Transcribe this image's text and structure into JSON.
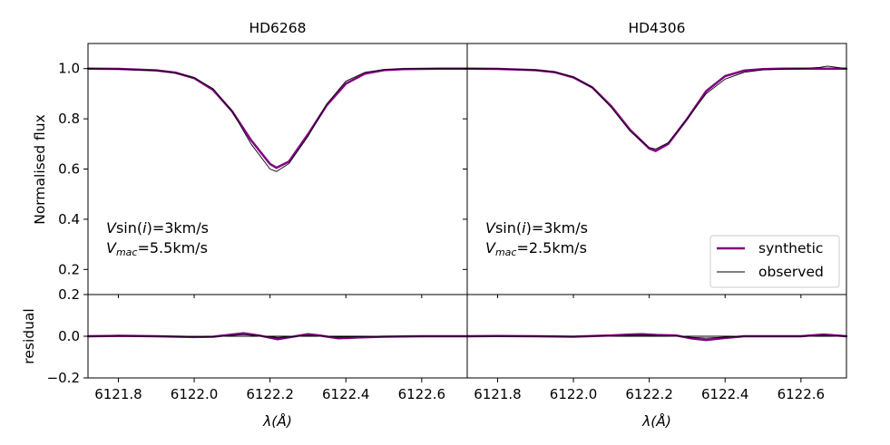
{
  "chart_data": {
    "type": "line",
    "x_range": [
      6121.72,
      6122.72
    ],
    "x_ticks": [
      6121.8,
      6122.0,
      6122.2,
      6122.4,
      6122.6
    ],
    "x_tick_labels": [
      "6121.8",
      "6122.0",
      "6122.2",
      "6122.4",
      "6122.6"
    ],
    "xlabel": "λ(Å)",
    "ylabel_top": "Normalised flux",
    "ylabel_bottom": "residual",
    "ylim_top": [
      0.1,
      1.1
    ],
    "ylim_bottom": [
      -0.2,
      0.2
    ],
    "y_ticks_top": [
      0.2,
      0.4,
      0.6,
      0.8,
      1.0
    ],
    "y_tick_labels_top": [
      "0.2",
      "0.4",
      "0.6",
      "0.8",
      "1.0"
    ],
    "y_ticks_bottom": [
      -0.2,
      0.0,
      0.2
    ],
    "y_tick_labels_bottom": [
      "−0.2",
      "0.0",
      "0.2"
    ],
    "colors": {
      "synthetic": "#800080",
      "observed": "#000000"
    },
    "legend": {
      "placement": "lower-right of right panel",
      "entries": [
        {
          "label": "synthetic",
          "color": "#800080"
        },
        {
          "label": "observed",
          "color": "#000000"
        }
      ]
    },
    "panels": [
      {
        "title": "HD6268",
        "annotation_line1": {
          "pre": "V",
          "mid": "sin(",
          "italic": "i",
          "post": ")=3km/s"
        },
        "annotation_line2": {
          "pre": "V",
          "sub": "mac",
          "post": "=5.5km/s"
        },
        "line_center": 6122.217,
        "series": [
          {
            "name": "synthetic",
            "x": [
              6121.72,
              6121.8,
              6121.9,
              6121.95,
              6122.0,
              6122.05,
              6122.1,
              6122.15,
              6122.2,
              6122.217,
              6122.25,
              6122.3,
              6122.35,
              6122.4,
              6122.45,
              6122.5,
              6122.55,
              6122.6,
              6122.65,
              6122.72
            ],
            "y": [
              1.0,
              0.999,
              0.993,
              0.984,
              0.962,
              0.915,
              0.83,
              0.715,
              0.62,
              0.605,
              0.63,
              0.738,
              0.855,
              0.94,
              0.98,
              0.994,
              0.998,
              0.999,
              1.0,
              1.0
            ]
          },
          {
            "name": "observed",
            "x": [
              6121.72,
              6121.8,
              6121.9,
              6121.95,
              6122.0,
              6122.05,
              6122.1,
              6122.15,
              6122.2,
              6122.217,
              6122.25,
              6122.3,
              6122.35,
              6122.4,
              6122.45,
              6122.5,
              6122.55,
              6122.6,
              6122.65,
              6122.72
            ],
            "y": [
              1.0,
              0.998,
              0.992,
              0.983,
              0.964,
              0.92,
              0.83,
              0.7,
              0.6,
              0.59,
              0.622,
              0.73,
              0.86,
              0.95,
              0.985,
              0.996,
              0.999,
              1.0,
              1.0,
              1.0
            ]
          }
        ],
        "residual": {
          "x": [
            6121.72,
            6121.8,
            6121.9,
            6122.0,
            6122.05,
            6122.1,
            6122.13,
            6122.17,
            6122.22,
            6122.26,
            6122.3,
            6122.33,
            6122.38,
            6122.43,
            6122.5,
            6122.6,
            6122.72
          ],
          "synthetic": [
            0.0,
            0.002,
            0.0,
            -0.004,
            -0.002,
            0.008,
            0.014,
            0.004,
            -0.014,
            -0.002,
            0.01,
            0.004,
            -0.01,
            -0.006,
            -0.002,
            0.0,
            0.0
          ],
          "observed": [
            0.0,
            0.001,
            0.0,
            -0.002,
            -0.002,
            0.004,
            0.008,
            0.002,
            -0.006,
            -0.002,
            0.004,
            0.002,
            -0.004,
            -0.002,
            -0.001,
            0.0,
            0.0
          ]
        }
      },
      {
        "title": "HD4306",
        "annotation_line1": {
          "pre": "V",
          "mid": "sin(",
          "italic": "i",
          "post": ")=3km/s"
        },
        "annotation_line2": {
          "pre": "V",
          "sub": "mac",
          "post": "=2.5km/s"
        },
        "line_center": 6122.217,
        "series": [
          {
            "name": "synthetic",
            "x": [
              6121.72,
              6121.8,
              6121.9,
              6121.95,
              6122.0,
              6122.05,
              6122.1,
              6122.15,
              6122.2,
              6122.217,
              6122.25,
              6122.3,
              6122.35,
              6122.4,
              6122.45,
              6122.5,
              6122.55,
              6122.6,
              6122.65,
              6122.67,
              6122.72
            ],
            "y": [
              1.0,
              0.999,
              0.994,
              0.986,
              0.965,
              0.925,
              0.85,
              0.755,
              0.682,
              0.672,
              0.7,
              0.8,
              0.91,
              0.97,
              0.992,
              0.998,
              1.0,
              1.0,
              1.0,
              1.0,
              1.0
            ]
          },
          {
            "name": "observed",
            "x": [
              6121.72,
              6121.8,
              6121.9,
              6121.95,
              6122.0,
              6122.05,
              6122.1,
              6122.15,
              6122.2,
              6122.217,
              6122.25,
              6122.3,
              6122.35,
              6122.4,
              6122.45,
              6122.5,
              6122.55,
              6122.6,
              6122.65,
              6122.67,
              6122.72
            ],
            "y": [
              1.0,
              0.999,
              0.994,
              0.987,
              0.967,
              0.925,
              0.845,
              0.75,
              0.685,
              0.68,
              0.705,
              0.8,
              0.9,
              0.958,
              0.985,
              0.995,
              0.998,
              1.0,
              1.005,
              1.01,
              1.0
            ]
          }
        ],
        "residual": {
          "x": [
            6121.72,
            6121.8,
            6121.9,
            6122.0,
            6122.1,
            6122.15,
            6122.18,
            6122.22,
            6122.27,
            6122.31,
            6122.35,
            6122.4,
            6122.45,
            6122.5,
            6122.6,
            6122.66,
            6122.72
          ],
          "synthetic": [
            0.0,
            0.001,
            0.0,
            -0.002,
            0.004,
            0.008,
            0.01,
            0.006,
            0.004,
            -0.01,
            -0.018,
            -0.008,
            0.0,
            0.0,
            0.0,
            0.008,
            0.0
          ],
          "observed": [
            0.0,
            0.0,
            0.0,
            -0.001,
            0.002,
            0.004,
            0.005,
            0.003,
            0.002,
            -0.005,
            -0.009,
            -0.004,
            0.0,
            0.0,
            0.0,
            0.004,
            0.0
          ]
        }
      }
    ]
  }
}
